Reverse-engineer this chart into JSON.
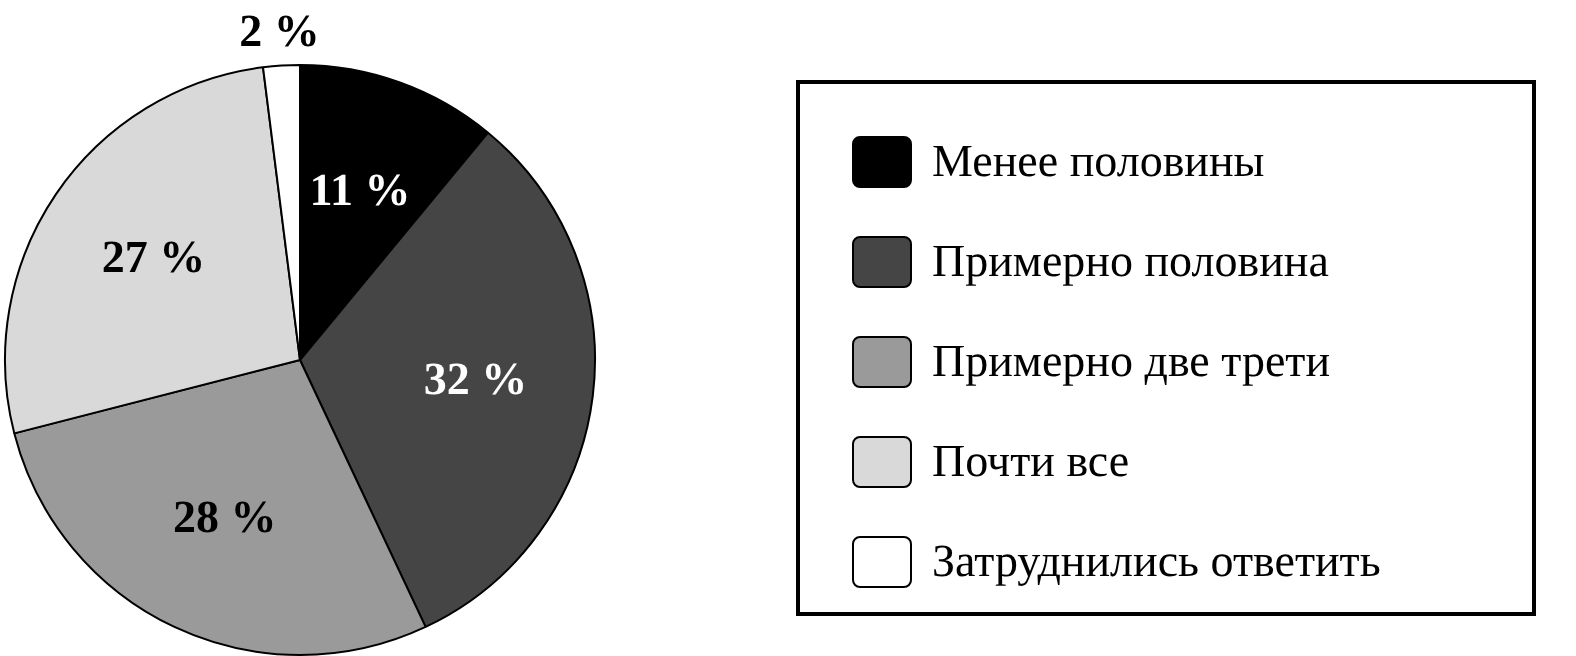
{
  "chart_data": {
    "type": "pie",
    "categories": [
      "Менее половины",
      "Примерно половина",
      "Примерно две трети",
      "Почти все",
      "Затруднились ответить"
    ],
    "values": [
      11,
      32,
      28,
      27,
      2
    ],
    "colors": [
      "#000000",
      "#454545",
      "#9a9a9a",
      "#d9d9d9",
      "#ffffff"
    ],
    "value_labels": [
      "11 %",
      "32 %",
      "28 %",
      "27 %",
      "2 %"
    ],
    "legend": "right"
  }
}
